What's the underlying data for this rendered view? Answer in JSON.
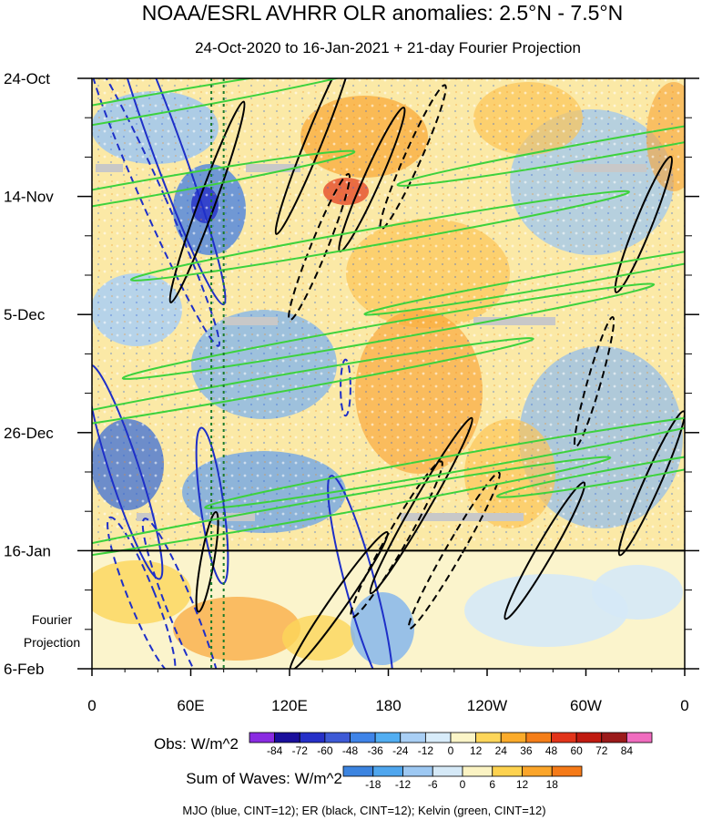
{
  "chart_data": {
    "type": "heatmap",
    "title": "NOAA/ESRL AVHRR OLR anomalies: 2.5°N - 7.5°N",
    "subtitle": "24-Oct-2020 to 16-Jan-2021 + 21-day Fourier Projection",
    "x_ticks": [
      "0",
      "60E",
      "120E",
      "180",
      "120W",
      "60W",
      "0"
    ],
    "x_tick_lon": [
      0,
      60,
      120,
      180,
      240,
      300,
      360
    ],
    "x_range": [
      0,
      360
    ],
    "y_ticks": [
      "24-Oct",
      "14-Nov",
      "5-Dec",
      "26-Dec",
      "16-Jan",
      "6-Feb"
    ],
    "y_tick_day": [
      0,
      21,
      42,
      63,
      84,
      105
    ],
    "y_range": [
      0,
      105
    ],
    "projection_boundary_day": 84,
    "projection_label": [
      "Fourier",
      "Projection"
    ],
    "vertical_reference_lon": [
      72.5,
      80
    ],
    "obs_colorbar": {
      "label": "Obs: W/m^2",
      "ticks": [
        "-84",
        "-72",
        "-60",
        "-48",
        "-36",
        "-24",
        "-12",
        "0",
        "12",
        "24",
        "36",
        "48",
        "60",
        "72",
        "84"
      ],
      "colors": [
        "#8a2be2",
        "#1a0f9c",
        "#2630c8",
        "#3e5ad6",
        "#3f84e8",
        "#52aef2",
        "#a9cff5",
        "#d8ecfa",
        "#fbf5c8",
        "#fdd65a",
        "#fbab2a",
        "#f57e18",
        "#e2341a",
        "#c01a10",
        "#9b1a1a",
        "#f06cbf"
      ]
    },
    "waves_colorbar": {
      "label": "Sum of Waves: W/m^2",
      "ticks": [
        "-18",
        "-12",
        "-6",
        "0",
        "6",
        "12",
        "18"
      ],
      "colors": [
        "#3c84e0",
        "#4fa6ee",
        "#9dc8f2",
        "#d5e9f7",
        "#fbf3c3",
        "#fdd24f",
        "#fba52a",
        "#f57a18"
      ]
    },
    "legend_note": "MJO (blue, CINT=12); ER (black, CINT=12); Kelvin (green, CINT=12)",
    "series": [
      {
        "name": "MJO",
        "color": "#1e2fc8",
        "contours": [
          {
            "lon": 45,
            "day": 12,
            "rx": 9,
            "ry": 30,
            "rot": -20,
            "dash": false
          },
          {
            "lon": 20,
            "day": 70,
            "rx": 9,
            "ry": 20,
            "rot": -18,
            "dash": false
          },
          {
            "lon": 38,
            "day": 22,
            "rx": 7,
            "ry": 28,
            "rot": -24,
            "dash": true
          },
          {
            "lon": 73,
            "day": 76,
            "rx": 7,
            "ry": 14,
            "rot": -8,
            "dash": false
          },
          {
            "lon": 163,
            "day": 90,
            "rx": 9,
            "ry": 20,
            "rot": -15,
            "dash": false
          },
          {
            "lon": 154,
            "day": 55,
            "rx": 3,
            "ry": 5,
            "rot": 0,
            "dash": true
          },
          {
            "lon": 30,
            "day": 92,
            "rx": 8,
            "ry": 15,
            "rot": -22,
            "dash": true
          },
          {
            "lon": 55,
            "day": 95,
            "rx": 8,
            "ry": 18,
            "rot": -22,
            "dash": true
          }
        ]
      },
      {
        "name": "ER",
        "color": "#000000",
        "contours": [
          {
            "lon": 70,
            "day": 22,
            "rx": 5,
            "ry": 19,
            "rot": 20,
            "dash": false
          },
          {
            "lon": 135,
            "day": 11,
            "rx": 5,
            "ry": 18,
            "rot": 22,
            "dash": false
          },
          {
            "lon": 138,
            "day": 30,
            "rx": 5,
            "ry": 14,
            "rot": 22,
            "dash": true
          },
          {
            "lon": 170,
            "day": 18,
            "rx": 5,
            "ry": 14,
            "rot": 24,
            "dash": false
          },
          {
            "lon": 195,
            "day": 14,
            "rx": 5,
            "ry": 14,
            "rot": 24,
            "dash": true
          },
          {
            "lon": 335,
            "day": 26,
            "rx": 5,
            "ry": 13,
            "rot": 22,
            "dash": false
          },
          {
            "lon": 305,
            "day": 54,
            "rx": 4,
            "ry": 12,
            "rot": 16,
            "dash": true
          },
          {
            "lon": 340,
            "day": 72,
            "rx": 5,
            "ry": 14,
            "rot": 24,
            "dash": false
          },
          {
            "lon": 185,
            "day": 82,
            "rx": 6,
            "ry": 16,
            "rot": 30,
            "dash": true
          },
          {
            "lon": 220,
            "day": 84,
            "rx": 5,
            "ry": 16,
            "rot": 30,
            "dash": true
          },
          {
            "lon": 275,
            "day": 84,
            "rx": 5,
            "ry": 14,
            "rot": 30,
            "dash": false
          },
          {
            "lon": 200,
            "day": 76,
            "rx": 5,
            "ry": 18,
            "rot": 30,
            "dash": false
          },
          {
            "lon": 150,
            "day": 93,
            "rx": 5,
            "ry": 15,
            "rot": 35,
            "dash": false
          },
          {
            "lon": 70,
            "day": 86,
            "rx": 4,
            "ry": 9,
            "rot": 10,
            "dash": false
          }
        ]
      },
      {
        "name": "Kelvin",
        "color": "#3dd23d",
        "contours": [
          {
            "lon": 30,
            "day": 5,
            "rx": 6,
            "ry": 45,
            "rot": 80,
            "dash": false
          },
          {
            "lon": 25,
            "day": 20,
            "rx": 5,
            "ry": 40,
            "rot": 80,
            "dash": false
          },
          {
            "lon": 175,
            "day": 28,
            "rx": 5,
            "ry": 45,
            "rot": 80,
            "dash": false
          },
          {
            "lon": 180,
            "day": 45,
            "rx": 5,
            "ry": 48,
            "rot": 80,
            "dash": false
          },
          {
            "lon": 100,
            "day": 55,
            "rx": 5,
            "ry": 50,
            "rot": 80,
            "dash": false
          },
          {
            "lon": 230,
            "day": 68,
            "rx": 5,
            "ry": 48,
            "rot": 80,
            "dash": false
          },
          {
            "lon": 130,
            "day": 77,
            "rx": 5,
            "ry": 55,
            "rot": 80,
            "dash": false
          },
          {
            "lon": 320,
            "day": 12,
            "rx": 5,
            "ry": 40,
            "rot": 80,
            "dash": false
          },
          {
            "lon": 300,
            "day": 35,
            "rx": 4,
            "ry": 40,
            "rot": 80,
            "dash": false
          },
          {
            "lon": 330,
            "day": 70,
            "rx": 4,
            "ry": 25,
            "rot": 80,
            "dash": false
          }
        ]
      }
    ]
  }
}
